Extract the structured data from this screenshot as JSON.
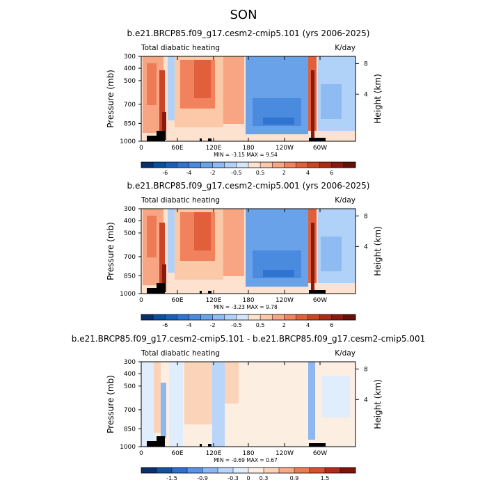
{
  "figure_title": "SON",
  "chart_data": [
    {
      "type": "heatmap",
      "title": "b.e21.BRCP85.f09_g17.cesm2-cmip5.101 (yrs 2006-2025)",
      "left_label": "Total diabatic heating",
      "right_label": "K/day",
      "ylabel": "Pressure (mb)",
      "y2label": "Height (km)",
      "x_ticks": [
        "0",
        "60E",
        "120E",
        "180",
        "120W",
        "60W"
      ],
      "y_ticks": [
        "300",
        "400",
        "500",
        "700",
        "850",
        "1000"
      ],
      "y2_ticks": [
        "8",
        "4"
      ],
      "stats": "MIN =   -3.15   MAX =     9.54",
      "colorbar_labels": [
        "-6",
        "-4",
        "-2",
        "-0.5",
        "0.5",
        "2",
        "4",
        "6"
      ]
    },
    {
      "type": "heatmap",
      "title": "b.e21.BRCP85.f09_g17.cesm2-cmip5.001 (yrs 2006-2025)",
      "left_label": "Total diabatic heating",
      "right_label": "K/day",
      "ylabel": "Pressure (mb)",
      "y2label": "Height (km)",
      "x_ticks": [
        "0",
        "60E",
        "120E",
        "180",
        "120W",
        "60W"
      ],
      "y_ticks": [
        "300",
        "400",
        "500",
        "700",
        "850",
        "1000"
      ],
      "y2_ticks": [
        "8",
        "4"
      ],
      "stats": "MIN =   -3.23   MAX =     9.78",
      "colorbar_labels": [
        "-6",
        "-4",
        "-2",
        "-0.5",
        "0.5",
        "2",
        "4",
        "6"
      ]
    },
    {
      "type": "heatmap",
      "title": "b.e21.BRCP85.f09_g17.cesm2-cmip5.101 - b.e21.BRCP85.f09_g17.cesm2-cmip5.001",
      "left_label": "Total diabatic heating",
      "right_label": "K/day",
      "ylabel": "Pressure (mb)",
      "y2label": "Height (km)",
      "x_ticks": [
        "0",
        "60E",
        "120E",
        "180",
        "120W",
        "60W"
      ],
      "y_ticks": [
        "300",
        "400",
        "500",
        "700",
        "850",
        "1000"
      ],
      "y2_ticks": [
        "8",
        "4"
      ],
      "stats": "MIN =   -0.69   MAX =     0.67",
      "colorbar_labels": [
        "-1.5",
        "-0.9",
        "-0.3",
        "0",
        "0.3",
        "0.9",
        "1.5"
      ]
    }
  ]
}
